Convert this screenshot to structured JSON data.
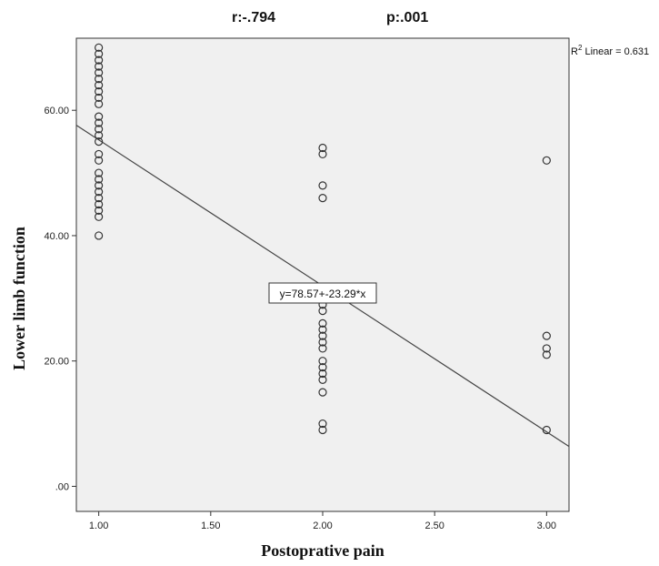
{
  "chart_data": {
    "type": "scatter",
    "title": "",
    "annotations": {
      "r": "r:-.794",
      "p": "p:.001",
      "r2_label": "R",
      "r2_sup": "2",
      "r2_rest": " Linear = 0.631",
      "equation": "y=78.57+-23.29*x"
    },
    "xlabel": "Postoprative pain",
    "ylabel": "Lower limb function",
    "xlim": [
      0.9,
      3.1
    ],
    "ylim": [
      -4,
      71.5
    ],
    "xticks": [
      1.0,
      1.5,
      2.0,
      2.5,
      3.0
    ],
    "xtick_labels": [
      "1.00",
      "1.50",
      "2.00",
      "2.50",
      "3.00"
    ],
    "yticks": [
      0,
      20,
      40,
      60
    ],
    "ytick_labels": [
      ".00",
      "20.00",
      "40.00",
      "60.00"
    ],
    "grid": false,
    "fit_line": {
      "intercept": 78.57,
      "slope": -23.29
    },
    "colors": {
      "plot_bg": "#f0f0f0",
      "marker": "#333333",
      "line": "#444444"
    },
    "points": [
      {
        "x": 1,
        "y": 70
      },
      {
        "x": 1,
        "y": 69
      },
      {
        "x": 1,
        "y": 68
      },
      {
        "x": 1,
        "y": 67
      },
      {
        "x": 1,
        "y": 66
      },
      {
        "x": 1,
        "y": 65
      },
      {
        "x": 1,
        "y": 64
      },
      {
        "x": 1,
        "y": 63
      },
      {
        "x": 1,
        "y": 62
      },
      {
        "x": 1,
        "y": 61
      },
      {
        "x": 1,
        "y": 59
      },
      {
        "x": 1,
        "y": 58
      },
      {
        "x": 1,
        "y": 57
      },
      {
        "x": 1,
        "y": 56
      },
      {
        "x": 1,
        "y": 55
      },
      {
        "x": 1,
        "y": 53
      },
      {
        "x": 1,
        "y": 52
      },
      {
        "x": 1,
        "y": 50
      },
      {
        "x": 1,
        "y": 49
      },
      {
        "x": 1,
        "y": 48
      },
      {
        "x": 1,
        "y": 47
      },
      {
        "x": 1,
        "y": 46
      },
      {
        "x": 1,
        "y": 45
      },
      {
        "x": 1,
        "y": 44
      },
      {
        "x": 1,
        "y": 43
      },
      {
        "x": 1,
        "y": 40
      },
      {
        "x": 2,
        "y": 54
      },
      {
        "x": 2,
        "y": 53
      },
      {
        "x": 2,
        "y": 48
      },
      {
        "x": 2,
        "y": 46
      },
      {
        "x": 2,
        "y": 31
      },
      {
        "x": 2,
        "y": 29
      },
      {
        "x": 2,
        "y": 28
      },
      {
        "x": 2,
        "y": 26
      },
      {
        "x": 2,
        "y": 25
      },
      {
        "x": 2,
        "y": 24
      },
      {
        "x": 2,
        "y": 23
      },
      {
        "x": 2,
        "y": 22
      },
      {
        "x": 2,
        "y": 20
      },
      {
        "x": 2,
        "y": 19
      },
      {
        "x": 2,
        "y": 18
      },
      {
        "x": 2,
        "y": 17
      },
      {
        "x": 2,
        "y": 15
      },
      {
        "x": 2,
        "y": 10
      },
      {
        "x": 2,
        "y": 9
      },
      {
        "x": 3,
        "y": 52
      },
      {
        "x": 3,
        "y": 24
      },
      {
        "x": 3,
        "y": 22
      },
      {
        "x": 3,
        "y": 21
      },
      {
        "x": 3,
        "y": 9
      }
    ]
  }
}
